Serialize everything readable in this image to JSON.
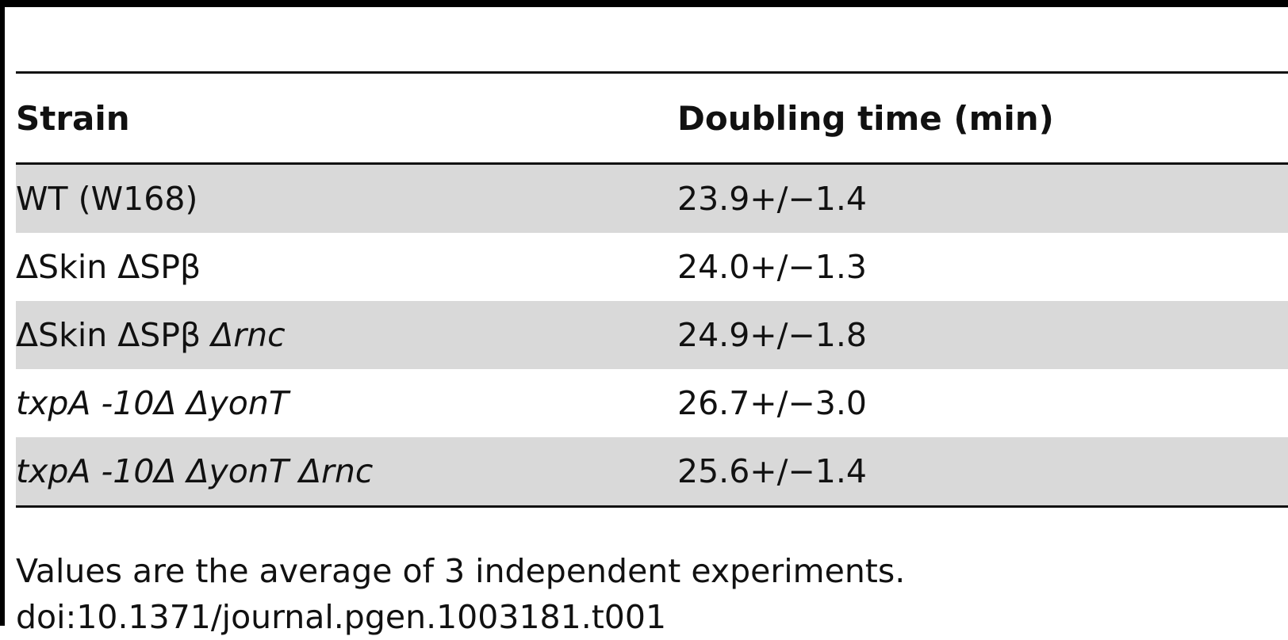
{
  "table": {
    "headers": [
      "Strain",
      "Doubling time (min)"
    ],
    "rows": [
      {
        "strain_parts": [
          {
            "text": "WT (W168)",
            "italic": false
          }
        ],
        "doubling": "23.9+/−1.4"
      },
      {
        "strain_parts": [
          {
            "text": "ΔSkin ΔSPβ",
            "italic": false
          }
        ],
        "doubling": "24.0+/−1.3"
      },
      {
        "strain_parts": [
          {
            "text": "ΔSkin ΔSPβ ",
            "italic": false
          },
          {
            "text": "Δrnc",
            "italic": true
          }
        ],
        "doubling": "24.9+/−1.8"
      },
      {
        "strain_parts": [
          {
            "text": "txpA -10Δ ΔyonT",
            "italic": true
          }
        ],
        "doubling": "26.7+/−3.0"
      },
      {
        "strain_parts": [
          {
            "text": "txpA -10Δ ΔyonT Δrnc",
            "italic": true
          }
        ],
        "doubling": "25.6+/−1.4"
      }
    ]
  },
  "footnote": "Values are the average of 3 independent experiments.",
  "doi": "doi:10.1371/journal.pgen.1003181.t001"
}
